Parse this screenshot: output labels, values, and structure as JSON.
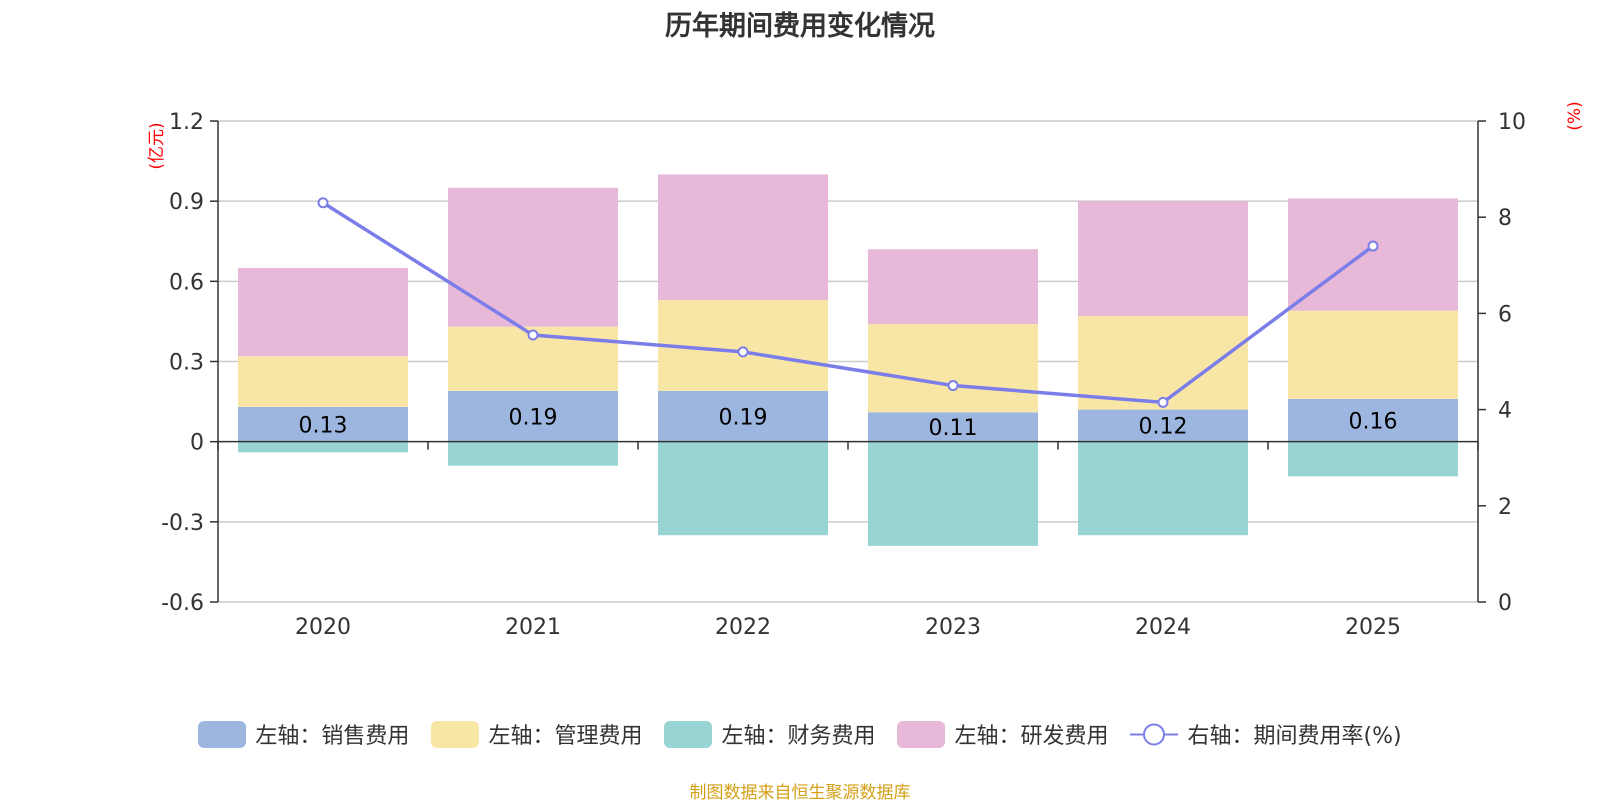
{
  "chart_data": {
    "type": "bar",
    "title": "历年期间费用变化情况",
    "categories": [
      "2020",
      "2021",
      "2022",
      "2023",
      "2024",
      "2025"
    ],
    "stacked": true,
    "series": [
      {
        "name": "左轴：销售费用",
        "axis": "left",
        "color": "#9db6e0",
        "values": [
          0.13,
          0.19,
          0.19,
          0.11,
          0.12,
          0.16
        ],
        "labels": [
          "0.13",
          "0.19",
          "0.19",
          "0.11",
          "0.12",
          "0.16"
        ]
      },
      {
        "name": "左轴：管理费用",
        "axis": "left",
        "color": "#f8e6a6",
        "values": [
          0.19,
          0.24,
          0.34,
          0.33,
          0.35,
          0.33
        ]
      },
      {
        "name": "左轴：财务费用",
        "axis": "left",
        "color": "#98d4d4",
        "values": [
          -0.04,
          -0.09,
          -0.35,
          -0.39,
          -0.35,
          -0.13
        ]
      },
      {
        "name": "左轴：研发费用",
        "axis": "left",
        "color": "#e8b8d8",
        "values": [
          0.33,
          0.52,
          0.47,
          0.28,
          0.43,
          0.42
        ]
      },
      {
        "name": "右轴：期间费用率(%)",
        "axis": "right",
        "type": "line",
        "color": "#7b7ee8",
        "values": [
          8.3,
          5.55,
          5.2,
          4.5,
          4.15,
          7.4
        ]
      }
    ],
    "left_axis": {
      "unit": "(亿元)",
      "ylim": [
        -0.6,
        1.2
      ],
      "ticks": [
        "-0.6",
        "-0.3",
        "0",
        "0.3",
        "0.6",
        "0.9",
        "1.2"
      ]
    },
    "right_axis": {
      "unit": "(%)",
      "ylim": [
        0,
        10
      ],
      "ticks": [
        "0",
        "2",
        "4",
        "6",
        "8",
        "10"
      ]
    },
    "legend_position": "bottom",
    "grid": true
  },
  "source_note": "制图数据来自恒生聚源数据库"
}
